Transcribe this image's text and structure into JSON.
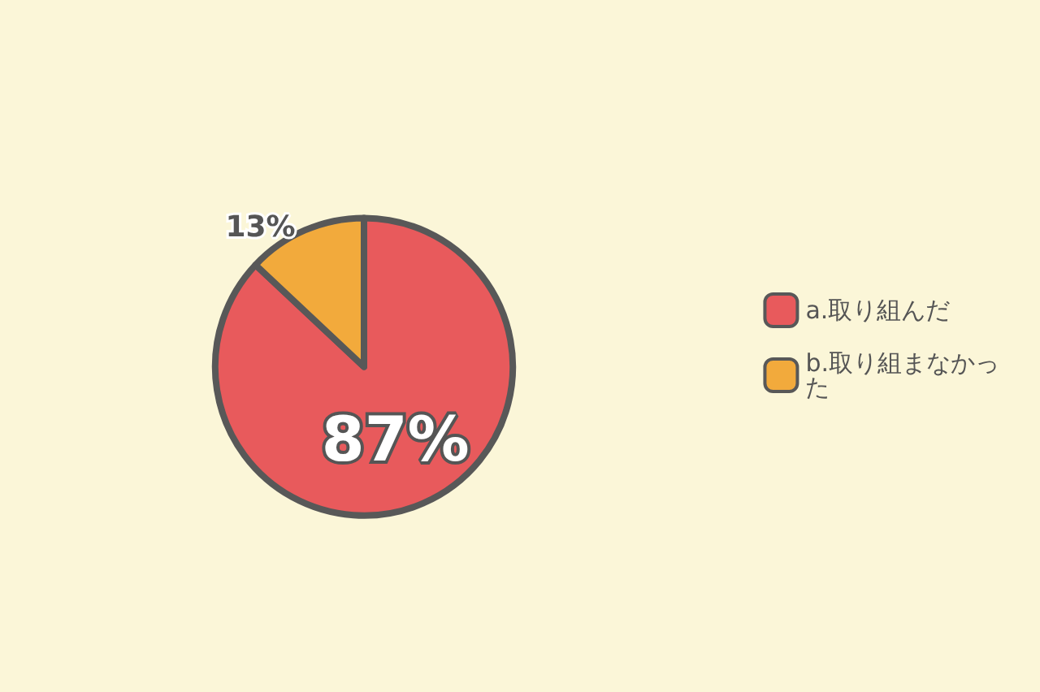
{
  "chart_data": {
    "type": "pie",
    "categories": [
      "a.取り組んだ",
      "b.取り組まなかった"
    ],
    "values": [
      87,
      13
    ],
    "colors": [
      "#e85a5c",
      "#f2aa3c"
    ],
    "value_labels": [
      "87%",
      "13%"
    ],
    "legend": "right"
  }
}
